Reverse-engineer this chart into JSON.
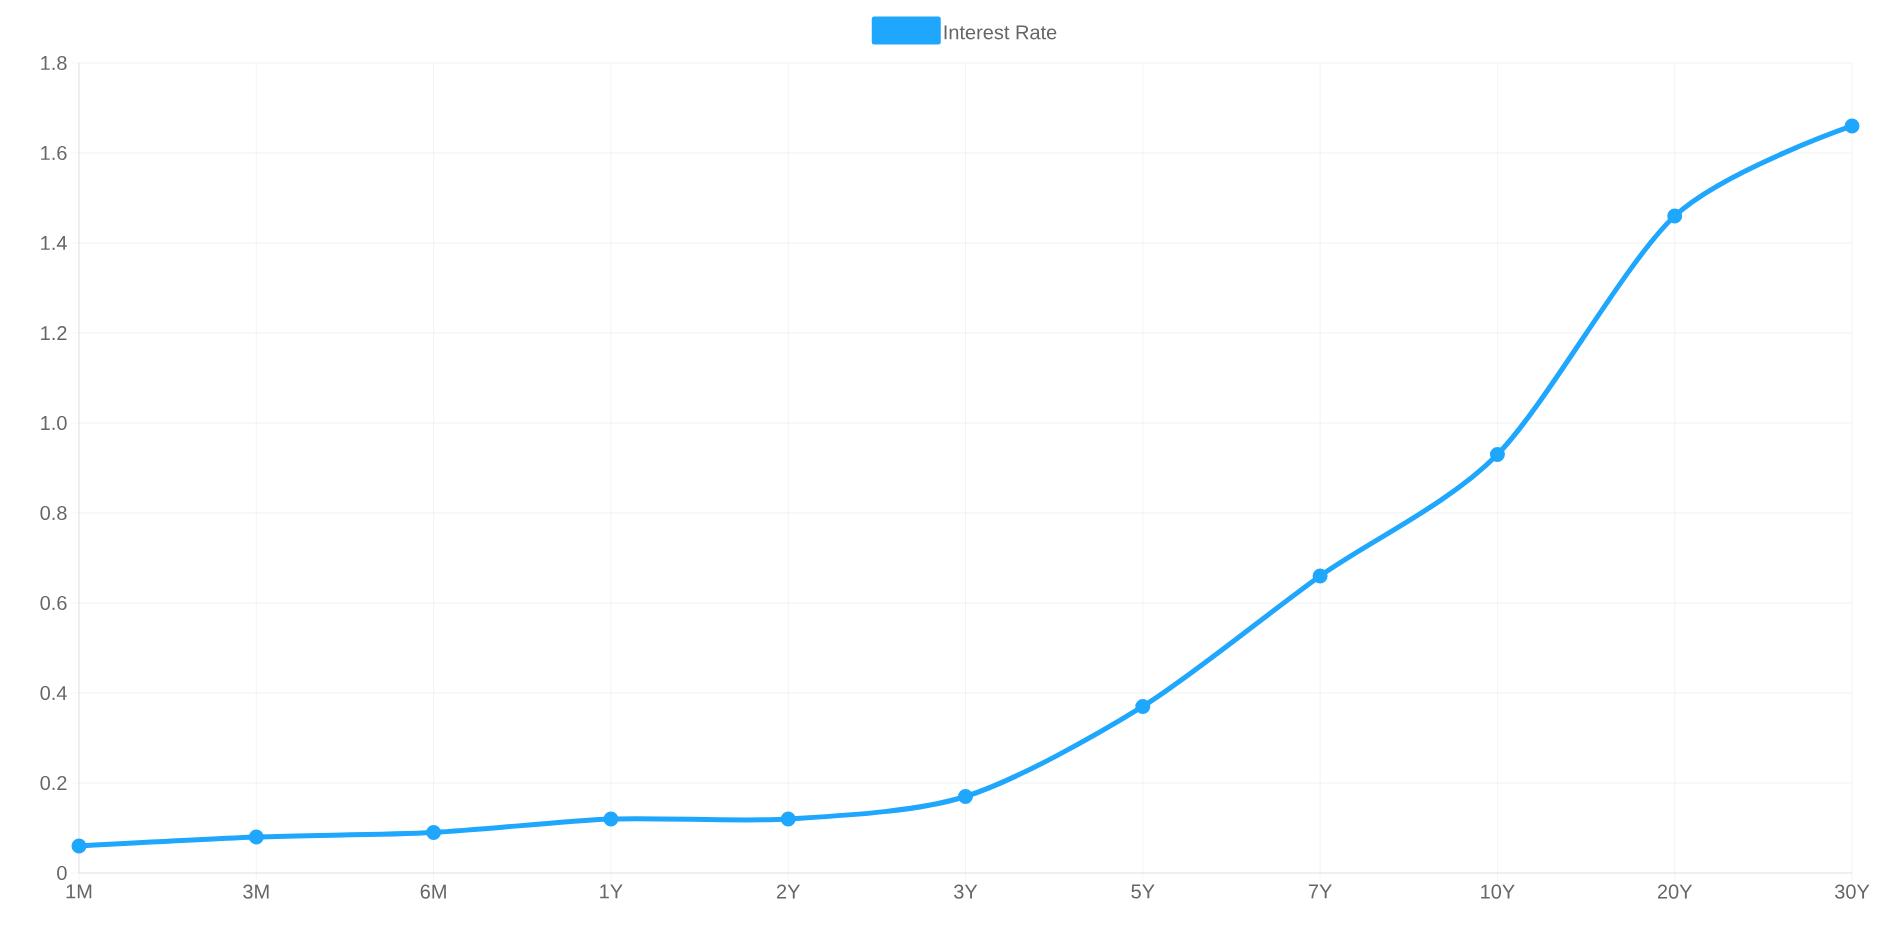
{
  "chart_data": {
    "type": "line",
    "categories": [
      "1M",
      "3M",
      "6M",
      "1Y",
      "2Y",
      "3Y",
      "5Y",
      "7Y",
      "10Y",
      "20Y",
      "30Y"
    ],
    "series": [
      {
        "name": "Interest Rate",
        "color": "#1ea7fd",
        "values": [
          0.06,
          0.08,
          0.09,
          0.12,
          0.12,
          0.17,
          0.37,
          0.66,
          0.93,
          1.46,
          1.66
        ]
      }
    ],
    "ylim": [
      0,
      1.8
    ],
    "yticks": [
      0,
      0.2,
      0.4,
      0.6,
      0.8,
      {
        "value": 1,
        "label": "1.0"
      },
      1.2,
      1.4,
      1.6,
      1.8
    ],
    "grid": true,
    "legend": "top",
    "marker": "circle",
    "line_style": "solid"
  }
}
